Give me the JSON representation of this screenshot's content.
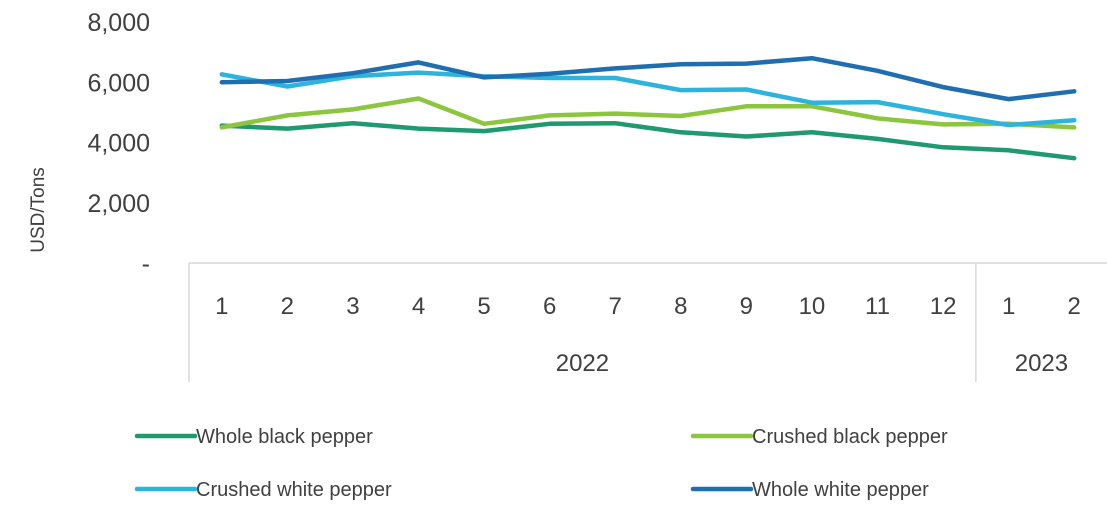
{
  "chart_data": {
    "type": "line",
    "ylabel": "USD/Tons",
    "xlabel": "",
    "ylim": [
      0,
      8000
    ],
    "yticks": [
      {
        "value": 0,
        "label": "-"
      },
      {
        "value": 2000,
        "label": "2,000"
      },
      {
        "value": 4000,
        "label": "4,000"
      },
      {
        "value": 6000,
        "label": "6,000"
      },
      {
        "value": 8000,
        "label": "8,000"
      }
    ],
    "categories": [
      "1",
      "2",
      "3",
      "4",
      "5",
      "6",
      "7",
      "8",
      "9",
      "10",
      "11",
      "12",
      "1",
      "2"
    ],
    "groups": [
      {
        "label": "2022",
        "count": 12
      },
      {
        "label": "2023",
        "count": 2
      }
    ],
    "grid": false,
    "legend_position": "bottom",
    "series": [
      {
        "name": "Whole black pepper",
        "color": "#1e9970",
        "values": [
          4560,
          4460,
          4640,
          4460,
          4380,
          4620,
          4640,
          4340,
          4200,
          4340,
          4120,
          3840,
          3740,
          3480
        ]
      },
      {
        "name": "Crushed black pepper",
        "color": "#8cc63f",
        "values": [
          4500,
          4900,
          5100,
          5460,
          4620,
          4900,
          4960,
          4880,
          5200,
          5200,
          4800,
          4600,
          4620,
          4500
        ]
      },
      {
        "name": "Crushed white pepper",
        "color": "#2eb4dc",
        "values": [
          6260,
          5860,
          6200,
          6320,
          6200,
          6140,
          6140,
          5740,
          5760,
          5320,
          5340,
          4940,
          4580,
          4740
        ]
      },
      {
        "name": "Whole white pepper",
        "color": "#1f6fb0",
        "values": [
          6000,
          6040,
          6300,
          6660,
          6160,
          6280,
          6460,
          6600,
          6620,
          6800,
          6380,
          5840,
          5440,
          5700
        ]
      }
    ]
  }
}
